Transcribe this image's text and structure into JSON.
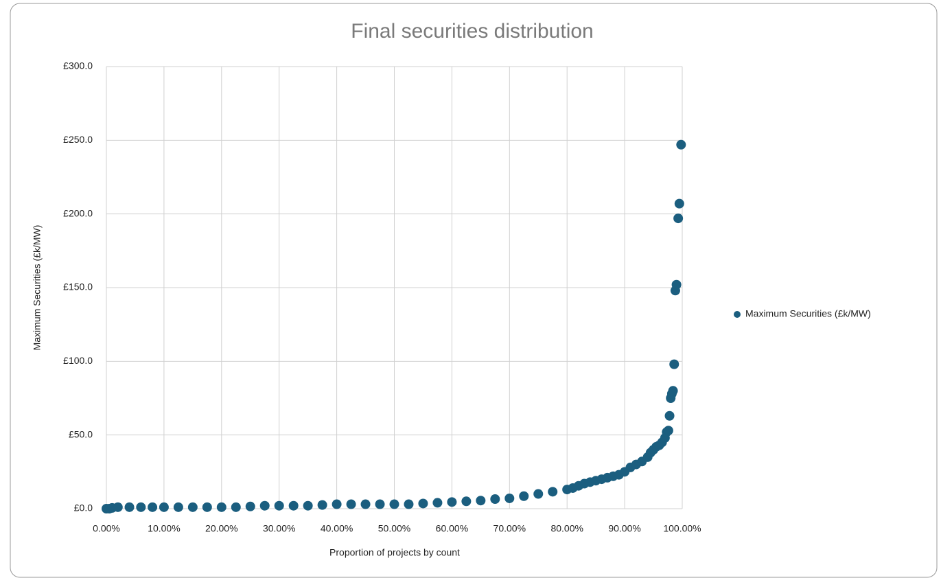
{
  "chart_data": {
    "type": "scatter",
    "title": "Final securities distribution",
    "x_label": "Proportion of projects by count",
    "y_label": "Maximum Securities (£k/MW)",
    "series": [
      {
        "name": "Maximum Securities (£k/MW)",
        "color": "#1b5e7f",
        "x": [
          0,
          0.5,
          1,
          2,
          4,
          6,
          8,
          10,
          12.5,
          15,
          17.5,
          20,
          22.5,
          25,
          27.5,
          30,
          32.5,
          35,
          37.5,
          40,
          42.5,
          45,
          47.5,
          50,
          52.5,
          55,
          57.5,
          60,
          62.5,
          65,
          67.5,
          70,
          72.5,
          75,
          77.5,
          80,
          81,
          82,
          83,
          84,
          85,
          86,
          87,
          88,
          89,
          90,
          91,
          92,
          93,
          94,
          94.5,
          95,
          95.5,
          96,
          96.5,
          97,
          97.3,
          97.6,
          97.8,
          98,
          98.2,
          98.4,
          98.6,
          98.8,
          99,
          99.3,
          99.5,
          99.8
        ],
        "values": [
          0,
          0,
          0.5,
          1,
          1,
          1,
          1,
          1,
          1,
          1,
          1,
          1,
          1,
          1.5,
          2,
          2,
          2,
          2,
          2.5,
          3,
          3,
          3,
          3,
          3,
          3,
          3.5,
          4,
          4.5,
          5,
          5.5,
          6.5,
          7,
          8.5,
          10,
          11.5,
          13,
          14,
          15.5,
          17,
          18,
          19,
          20,
          21,
          22,
          23,
          25,
          28,
          30,
          32,
          35,
          38,
          40,
          42,
          43,
          45,
          48,
          52,
          53,
          63,
          75,
          78,
          80,
          98,
          148,
          152,
          197,
          207,
          247
        ]
      }
    ],
    "xlim": [
      0,
      100
    ],
    "xticks": [
      {
        "value": 0,
        "label": "0.00%"
      },
      {
        "value": 10,
        "label": "10.00%"
      },
      {
        "value": 20,
        "label": "20.00%"
      },
      {
        "value": 30,
        "label": "30.00%"
      },
      {
        "value": 40,
        "label": "40.00%"
      },
      {
        "value": 50,
        "label": "50.00%"
      },
      {
        "value": 60,
        "label": "60.00%"
      },
      {
        "value": 70,
        "label": "70.00%"
      },
      {
        "value": 80,
        "label": "80.00%"
      },
      {
        "value": 90,
        "label": "90.00%"
      },
      {
        "value": 100,
        "label": "100.00%"
      }
    ],
    "ylim": [
      0,
      300
    ],
    "yticks": [
      {
        "value": 0,
        "label": "£0.0"
      },
      {
        "value": 50,
        "label": "£50.0"
      },
      {
        "value": 100,
        "label": "£100.0"
      },
      {
        "value": 150,
        "label": "£150.0"
      },
      {
        "value": 200,
        "label": "£200.0"
      },
      {
        "value": 250,
        "label": "£250.0"
      },
      {
        "value": 300,
        "label": "£300.0"
      }
    ],
    "grid": true,
    "legend": "right"
  }
}
